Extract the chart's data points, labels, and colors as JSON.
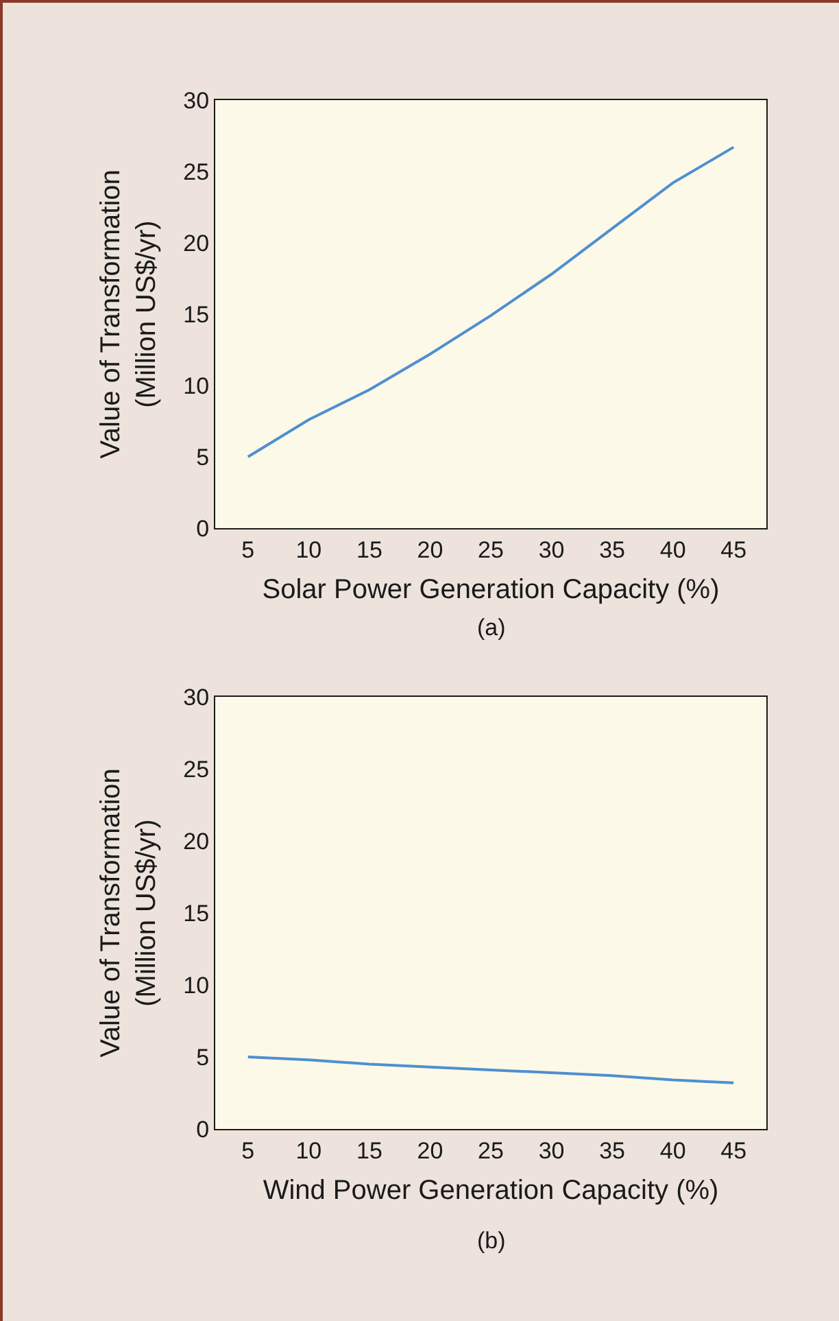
{
  "chart_data": [
    {
      "type": "line",
      "xlabel": "Solar Power Generation Capacity (%)",
      "ylabel": "Value of Transformation\n(Million US$/yr)",
      "annotations": [
        "(a)"
      ],
      "x": [
        5,
        10,
        15,
        20,
        25,
        30,
        35,
        40,
        45
      ],
      "series": [
        {
          "color": "#4f8fd0",
          "values": [
            5.0,
            7.6,
            9.7,
            12.2,
            14.9,
            17.8,
            21.0,
            24.2,
            26.7
          ]
        }
      ],
      "xlim": [
        2.3,
        47.7
      ],
      "xticks": [
        5,
        10,
        15,
        20,
        25,
        30,
        35,
        40,
        45
      ],
      "ylim": [
        0,
        30
      ],
      "yticks": [
        0,
        5,
        10,
        15,
        20,
        25,
        30
      ],
      "line_style": "solid"
    },
    {
      "type": "line",
      "xlabel": "Wind Power Generation Capacity (%)",
      "ylabel": "Value of Transformation\n(Million US$/yr)",
      "annotations": [
        "(b)"
      ],
      "x": [
        5,
        10,
        15,
        20,
        25,
        30,
        35,
        40,
        45
      ],
      "series": [
        {
          "color": "#4f8fd0",
          "values": [
            5.0,
            4.8,
            4.5,
            4.3,
            4.1,
            3.9,
            3.7,
            3.4,
            3.2
          ]
        }
      ],
      "xlim": [
        2.3,
        47.7
      ],
      "xticks": [
        5,
        10,
        15,
        20,
        25,
        30,
        35,
        40,
        45
      ],
      "ylim": [
        0,
        30
      ],
      "yticks": [
        0,
        5,
        10,
        15,
        20,
        25,
        30
      ],
      "line_style": "solid"
    }
  ]
}
